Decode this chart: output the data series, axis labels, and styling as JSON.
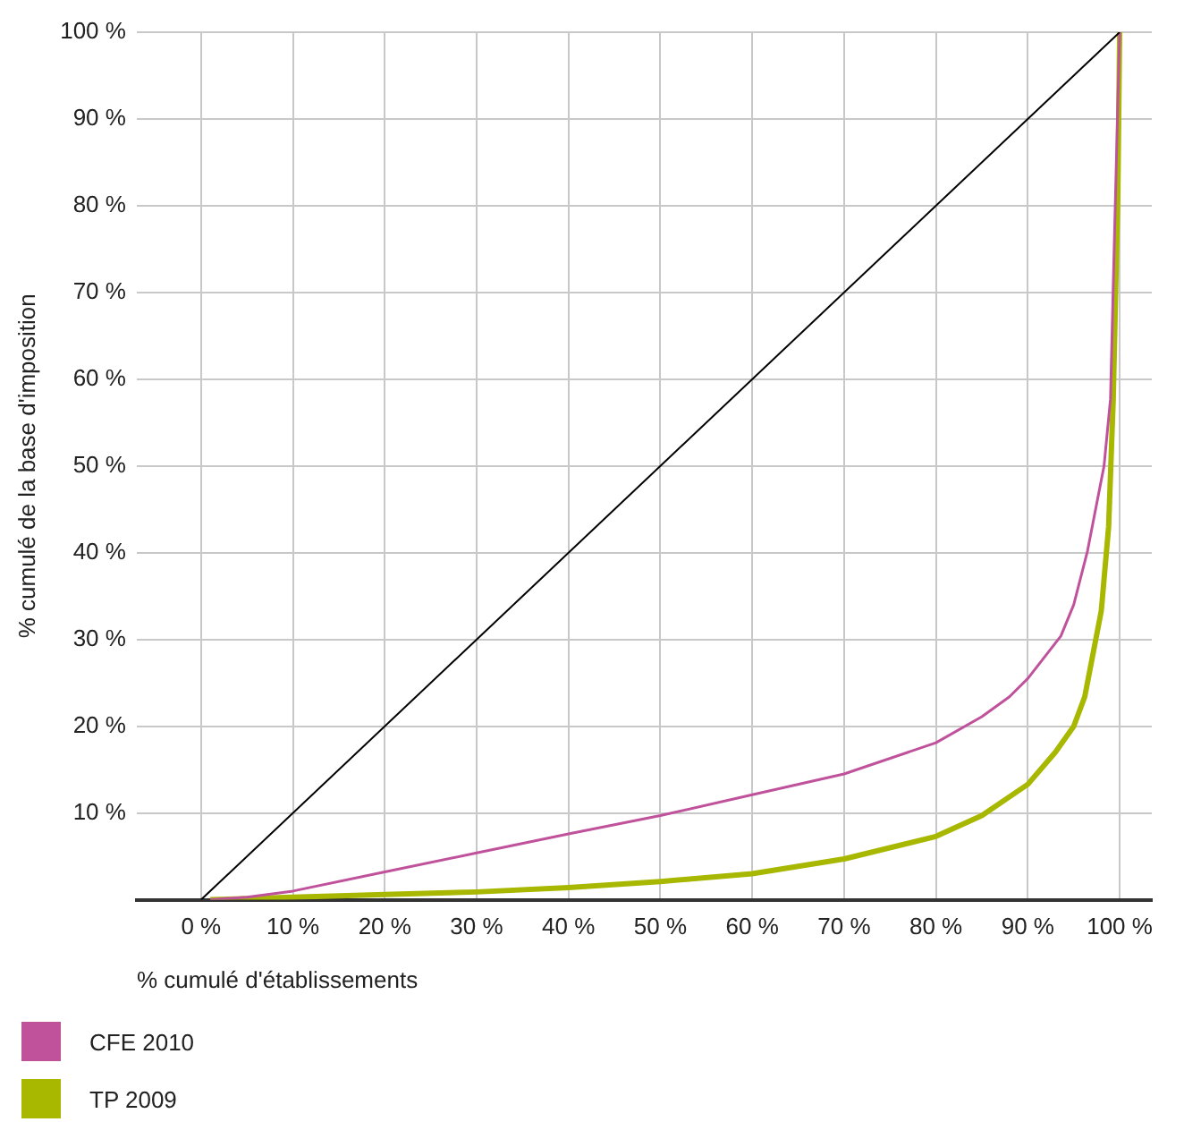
{
  "chart_data": {
    "type": "line",
    "xlabel": "% cumulé d'établissements",
    "ylabel": "% cumulé de la base d'imposition",
    "xlim": [
      -7,
      103.5
    ],
    "ylim": [
      0,
      100
    ],
    "xticks": [
      {
        "value": 0,
        "label": "0 %"
      },
      {
        "value": 10,
        "label": "10 %"
      },
      {
        "value": 20,
        "label": "20 %"
      },
      {
        "value": 30,
        "label": "30 %"
      },
      {
        "value": 40,
        "label": "40 %"
      },
      {
        "value": 50,
        "label": "50 %"
      },
      {
        "value": 60,
        "label": "60 %"
      },
      {
        "value": 70,
        "label": "70 %"
      },
      {
        "value": 80,
        "label": "80 %"
      },
      {
        "value": 90,
        "label": "90 %"
      },
      {
        "value": 100,
        "label": "100 %"
      }
    ],
    "yticks": [
      {
        "value": 10,
        "label": "10 %"
      },
      {
        "value": 20,
        "label": "20 %"
      },
      {
        "value": 30,
        "label": "30 %"
      },
      {
        "value": 40,
        "label": "40 %"
      },
      {
        "value": 50,
        "label": "50 %"
      },
      {
        "value": 60,
        "label": "60 %"
      },
      {
        "value": 70,
        "label": "70 %"
      },
      {
        "value": 80,
        "label": "80 %"
      },
      {
        "value": 90,
        "label": "90 %"
      },
      {
        "value": 100,
        "label": "100 %"
      }
    ],
    "grid": true,
    "legend": "bottom left",
    "marker": "none",
    "line_style": "solid",
    "series": [
      {
        "color": "#000000",
        "x": [
          0,
          100
        ],
        "values": [
          0,
          100
        ]
      },
      {
        "name": "CFE 2010",
        "color": "#c0529c",
        "x": [
          1,
          5,
          10,
          20,
          30,
          40,
          50,
          60,
          70,
          80,
          85,
          88,
          90,
          93.6,
          95,
          96.5,
          98.3,
          99,
          99.4,
          100
        ],
        "values": [
          0,
          0.3,
          1,
          3.2,
          5.4,
          7.6,
          9.7,
          12.1,
          14.5,
          18.1,
          21.1,
          23.4,
          25.5,
          30.4,
          34,
          40.2,
          50,
          57.7,
          75,
          100
        ]
      },
      {
        "name": "TP 2009",
        "color": "#a8b800",
        "x": [
          1,
          10,
          20,
          30,
          40,
          50,
          60,
          70,
          80,
          85,
          90,
          93,
          95,
          96.2,
          98,
          98.8,
          99.3,
          99.8,
          100
        ],
        "values": [
          0,
          0.3,
          0.6,
          0.9,
          1.4,
          2.1,
          3,
          4.7,
          7.3,
          9.7,
          13.3,
          17,
          20,
          23.4,
          33.3,
          43,
          57.7,
          81,
          100
        ]
      }
    ]
  }
}
